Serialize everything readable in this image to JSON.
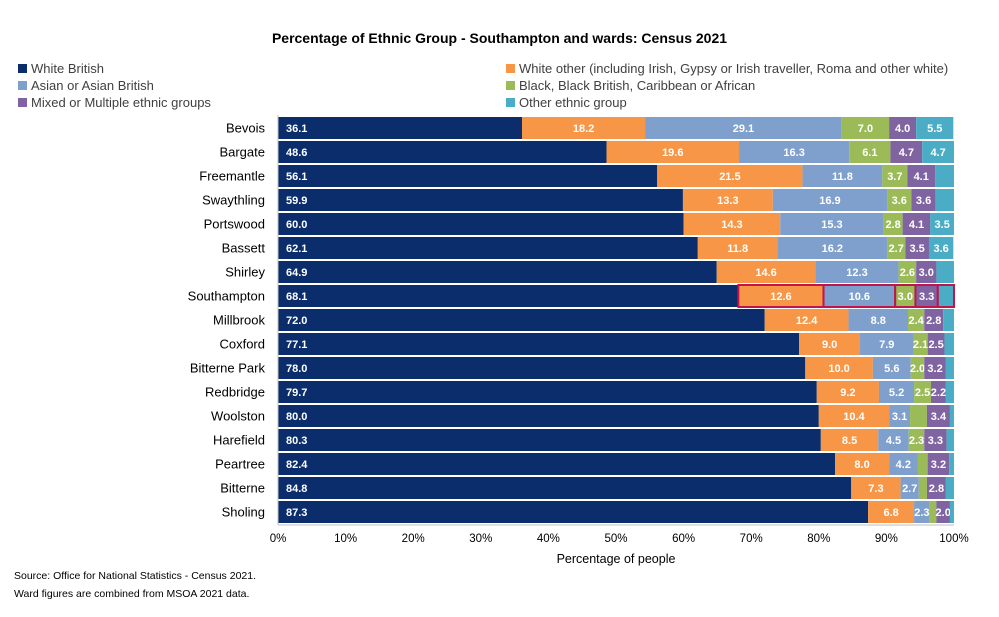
{
  "title": "Percentage of Ethnic Group - Southampton and wards: Census 2021",
  "source_line1": "Source: Office for National Statistics  - Census 2021.",
  "source_line2": "Ward figures are combined from MSOA 2021 data.",
  "chart_data": {
    "type": "bar",
    "orientation": "horizontal",
    "stacked": "100%",
    "title": "Percentage of Ethnic Group - Southampton and wards: Census 2021",
    "xlabel": "Percentage of people",
    "ylabel": "",
    "xlim": [
      0,
      100
    ],
    "x_ticks": [
      "0%",
      "10%",
      "20%",
      "30%",
      "40%",
      "50%",
      "60%",
      "70%",
      "80%",
      "90%",
      "100%"
    ],
    "legend_position": "top",
    "highlighted_category": "Southampton",
    "categories": [
      "Bevois",
      "Bargate",
      "Freemantle",
      "Swaythling",
      "Portswood",
      "Bassett",
      "Shirley",
      "Southampton",
      "Millbrook",
      "Coxford",
      "Bitterne Park",
      "Redbridge",
      "Woolston",
      "Harefield",
      "Peartree",
      "Bitterne",
      "Sholing"
    ],
    "series": [
      {
        "name": "White British",
        "color": "#0b2d6b",
        "values": [
          36.1,
          48.6,
          56.1,
          59.9,
          60.0,
          62.1,
          64.9,
          68.1,
          72.0,
          77.1,
          78.0,
          79.7,
          80.0,
          80.3,
          82.4,
          84.8,
          87.3
        ],
        "labels": [
          "36.1",
          "48.6",
          "56.1",
          "59.9",
          "60.0",
          "62.1",
          "64.9",
          "68.1",
          "72.0",
          "77.1",
          "78.0",
          "79.7",
          "80.0",
          "80.3",
          "82.4",
          "84.8",
          "87.3"
        ]
      },
      {
        "name": "White other (including Irish, Gypsy or Irish traveller, Roma and other white)",
        "color": "#f79646",
        "values": [
          18.2,
          19.6,
          21.5,
          13.3,
          14.3,
          11.8,
          14.6,
          12.6,
          12.4,
          9.0,
          10.0,
          9.2,
          10.4,
          8.5,
          8.0,
          7.3,
          6.8
        ],
        "labels": [
          "18.2",
          "19.6",
          "21.5",
          "13.3",
          "14.3",
          "11.8",
          "14.6",
          "12.6",
          "12.4",
          "9.0",
          "10.0",
          "9.2",
          "10.4",
          "8.5",
          "8.0",
          "7.3",
          "6.8"
        ]
      },
      {
        "name": "Asian or Asian British",
        "color": "#7f9fcd",
        "values": [
          29.1,
          16.3,
          11.8,
          16.9,
          15.3,
          16.2,
          12.3,
          10.6,
          8.8,
          7.9,
          5.6,
          5.2,
          3.1,
          4.5,
          4.2,
          2.7,
          2.3
        ],
        "labels": [
          "29.1",
          "16.3",
          "11.8",
          "16.9",
          "15.3",
          "16.2",
          "12.3",
          "10.6",
          "8.8",
          "7.9",
          "5.6",
          "5.2",
          "3.1",
          "4.5",
          "4.2",
          "2.7",
          "2.3"
        ]
      },
      {
        "name": "Black, Black British, Caribbean or African",
        "color": "#9bbb59",
        "values": [
          7.0,
          6.1,
          3.7,
          3.6,
          2.8,
          2.7,
          2.6,
          3.0,
          2.4,
          2.1,
          2.0,
          2.5,
          2.5,
          2.3,
          1.5,
          1.2,
          1.0
        ],
        "labels": [
          "7.0",
          "6.1",
          "3.7",
          "3.6",
          "2.8",
          "2.7",
          "2.6",
          "3.0",
          "2.4",
          "2.1",
          "2.0",
          "2.5",
          "",
          "2.3",
          "",
          "",
          ""
        ]
      },
      {
        "name": "Mixed or Multiple ethnic groups",
        "color": "#8064a2",
        "values": [
          4.0,
          4.7,
          4.1,
          3.6,
          4.1,
          3.5,
          3.0,
          3.3,
          2.8,
          2.5,
          3.2,
          2.2,
          3.4,
          3.3,
          3.2,
          2.8,
          2.0
        ],
        "labels": [
          "4.0",
          "4.7",
          "4.1",
          "3.6",
          "4.1",
          "3.5",
          "3.0",
          "3.3",
          "2.8",
          "2.5",
          "3.2",
          "2.2",
          "3.4",
          "3.3",
          "3.2",
          "2.8",
          "2.0"
        ]
      },
      {
        "name": "Other ethnic group",
        "color": "#4bacc6",
        "values": [
          5.5,
          4.7,
          2.8,
          2.7,
          3.5,
          3.6,
          2.6,
          2.4,
          1.6,
          1.4,
          1.2,
          1.2,
          0.6,
          1.3,
          0.7,
          1.2,
          0.6
        ],
        "labels": [
          "5.5",
          "4.7",
          "",
          "",
          "3.5",
          "3.6",
          "",
          "",
          "",
          "",
          "",
          "",
          "",
          "",
          "",
          "",
          ""
        ]
      }
    ]
  }
}
